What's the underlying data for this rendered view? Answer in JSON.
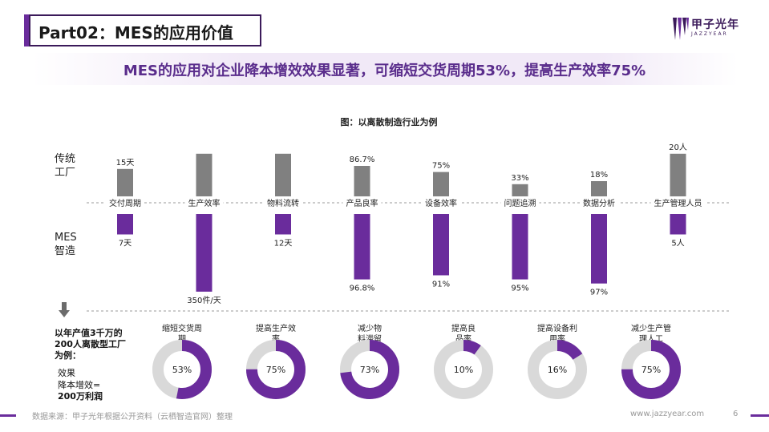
{
  "header": {
    "section_title": "Part02：MES的应用价值",
    "logo_name": "甲子光年",
    "logo_sub": "JAZZYEAR",
    "headline": "MES的应用对企业降本增效效果显著，可缩短交货周期53%，提高生产效率75%"
  },
  "colors": {
    "traditional": "#808080",
    "mes": "#6a2c9c",
    "donut_track": "#d9d9d9",
    "accent": "#6a2c9c"
  },
  "chart_data": [
    {
      "type": "bar",
      "title": "图：以离散制造行业为例",
      "row_labels": {
        "traditional": "传统工厂",
        "mes": "MES智造"
      },
      "categories": [
        "交付周期",
        "生产效率",
        "物料流转",
        "产品良率",
        "设备效率",
        "问题追溯",
        "数据分析",
        "生产管理人员"
      ],
      "series": [
        {
          "name": "传统工厂",
          "labels": [
            "15天",
            "",
            "",
            "86.7%",
            "75%",
            "33%",
            "18%",
            "20人"
          ],
          "relative_height": [
            0.45,
            0.7,
            0.7,
            0.5,
            0.4,
            0.2,
            0.25,
            0.7
          ]
        },
        {
          "name": "MES智造",
          "labels": [
            "7天",
            "350件/天",
            "12天",
            "96.8%",
            "91%",
            "95%",
            "97%",
            "5人"
          ],
          "relative_height": [
            0.25,
            0.95,
            0.25,
            0.8,
            0.75,
            0.8,
            0.85,
            0.25
          ]
        }
      ]
    },
    {
      "type": "pie",
      "subtitle_lines": [
        "以年产值3千万的",
        "200人离散型工厂",
        "为例："
      ],
      "note_lines": [
        "效果",
        "降本增效=",
        "200万利润"
      ],
      "items": [
        {
          "label": "缩短交货周期",
          "label_lines": [
            "缩短交货周",
            "期"
          ],
          "value": 53,
          "display": "53%"
        },
        {
          "label": "提高生产效率",
          "label_lines": [
            "提高生产效",
            "率"
          ],
          "value": 75,
          "display": "75%"
        },
        {
          "label": "减少物料滞留",
          "label_lines": [
            "减少物",
            "料滞留"
          ],
          "value": 73,
          "display": "73%"
        },
        {
          "label": "提高良品率",
          "label_lines": [
            "提高良",
            "品率"
          ],
          "value": 10,
          "display": "10%"
        },
        {
          "label": "提高设备利用率",
          "label_lines": [
            "提高设备利",
            "用率"
          ],
          "value": 16,
          "display": "16%"
        },
        {
          "label": "减少生产管理人工",
          "label_lines": [
            "减少生产管",
            "理人工"
          ],
          "value": 75,
          "display": "75%"
        }
      ]
    }
  ],
  "footer": {
    "source": "数据来源：甲子光年根据公开资料（云栖智造官网）整理",
    "url": "www.jazzyear.com",
    "page": "6"
  }
}
